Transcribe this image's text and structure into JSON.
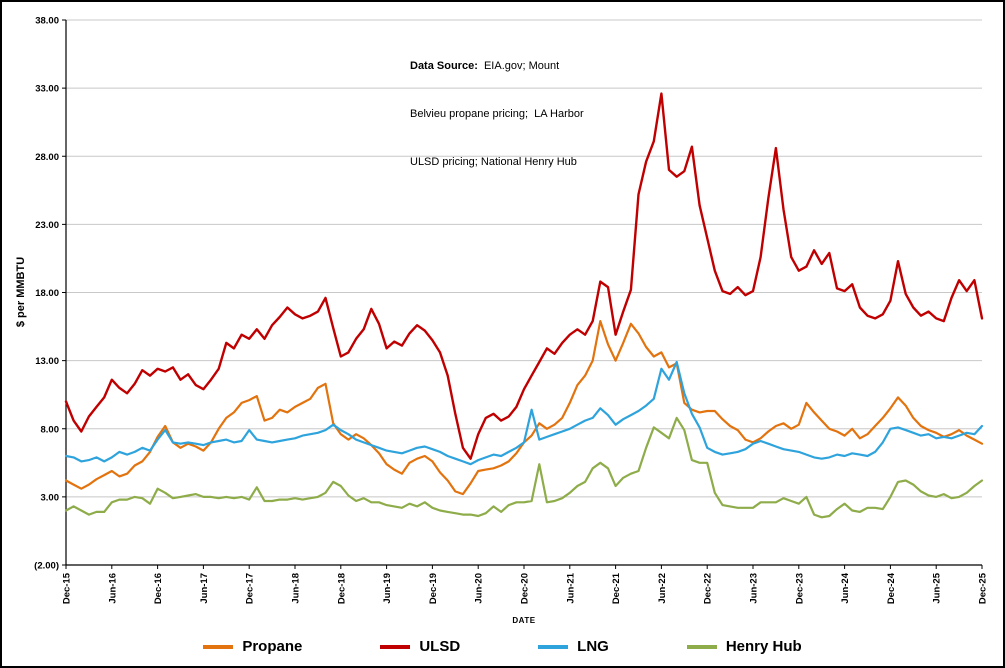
{
  "annotation": {
    "label": "Data Source:",
    "line1_rest": "  EIA.gov; Mount",
    "line2": "Belvieu propane pricing;  LA Harbor",
    "line3": "ULSD pricing; National Henry Hub"
  },
  "axes": {
    "ylabel": "$ per MMBTU",
    "xlabel": "DATE"
  },
  "legend": {
    "items": [
      {
        "label": "Propane",
        "color": "#E2730E"
      },
      {
        "label": "ULSD",
        "color": "#C00000"
      },
      {
        "label": "LNG",
        "color": "#2EA3DC"
      },
      {
        "label": "Henry Hub",
        "color": "#8EAC49"
      }
    ]
  },
  "chart_data": {
    "type": "line",
    "title": "",
    "ylabel": "$ per MMBTU",
    "xlabel": "DATE",
    "ylim": [
      -2,
      38
    ],
    "grid": "horizontal",
    "legend_position": "bottom",
    "gridline_color": "#C8C8C8",
    "axis_color": "#000000",
    "x_count": 121,
    "x_unit": "monthly from Dec-15 to Dec-25",
    "y_ticks": [
      {
        "value": 38,
        "label": "38.00"
      },
      {
        "value": 33,
        "label": "33.00"
      },
      {
        "value": 28,
        "label": "28.00"
      },
      {
        "value": 23,
        "label": "23.00"
      },
      {
        "value": 18,
        "label": "18.00"
      },
      {
        "value": 13,
        "label": "13.00"
      },
      {
        "value": 8,
        "label": "8.00"
      },
      {
        "value": 3,
        "label": "3.00"
      },
      {
        "value": -2,
        "label": "(2.00)"
      }
    ],
    "x_ticks": [
      {
        "index": 0,
        "label": "Dec-15"
      },
      {
        "index": 6,
        "label": "Jun-16"
      },
      {
        "index": 12,
        "label": "Dec-16"
      },
      {
        "index": 18,
        "label": "Jun-17"
      },
      {
        "index": 24,
        "label": "Dec-17"
      },
      {
        "index": 30,
        "label": "Jun-18"
      },
      {
        "index": 36,
        "label": "Dec-18"
      },
      {
        "index": 42,
        "label": "Jun-19"
      },
      {
        "index": 48,
        "label": "Dec-19"
      },
      {
        "index": 54,
        "label": "Jun-20"
      },
      {
        "index": 60,
        "label": "Dec-20"
      },
      {
        "index": 66,
        "label": "Jun-21"
      },
      {
        "index": 72,
        "label": "Dec-21"
      },
      {
        "index": 78,
        "label": "Jun-22"
      },
      {
        "index": 84,
        "label": "Dec-22"
      },
      {
        "index": 90,
        "label": "Jun-23"
      },
      {
        "index": 96,
        "label": "Dec-23"
      },
      {
        "index": 102,
        "label": "Jun-24"
      },
      {
        "index": 108,
        "label": "Dec-24"
      },
      {
        "index": 114,
        "label": "Jun-25"
      },
      {
        "index": 120,
        "label": "Dec-25"
      }
    ],
    "series": [
      {
        "key": "propane",
        "name": "Propane",
        "color": "#E2730E",
        "width": 2.2,
        "values": [
          4.2,
          3.9,
          3.6,
          3.9,
          4.3,
          4.6,
          4.9,
          4.5,
          4.7,
          5.3,
          5.6,
          6.3,
          7.4,
          8.2,
          7.0,
          6.6,
          6.9,
          6.7,
          6.4,
          7.0,
          8.0,
          8.8,
          9.2,
          9.9,
          10.1,
          10.4,
          8.6,
          8.8,
          9.4,
          9.2,
          9.6,
          9.9,
          10.2,
          11.0,
          11.3,
          8.4,
          7.6,
          7.2,
          7.6,
          7.3,
          6.8,
          6.2,
          5.4,
          5.0,
          4.7,
          5.5,
          5.8,
          6.0,
          5.6,
          4.8,
          4.2,
          3.4,
          3.2,
          4.0,
          4.9,
          5.0,
          5.1,
          5.3,
          5.6,
          6.2,
          7.0,
          7.5,
          8.4,
          8.0,
          8.3,
          8.8,
          9.9,
          11.2,
          11.9,
          13.0,
          15.9,
          14.2,
          13.0,
          14.3,
          15.7,
          15.0,
          14.0,
          13.3,
          13.6,
          12.5,
          12.8,
          9.9,
          9.4,
          9.2,
          9.3,
          9.3,
          8.7,
          8.2,
          7.9,
          7.2,
          7.0,
          7.3,
          7.8,
          8.2,
          8.4,
          8.0,
          8.3,
          9.9,
          9.2,
          8.6,
          8.0,
          7.8,
          7.5,
          8.0,
          7.3,
          7.6,
          8.2,
          8.8,
          9.5,
          10.3,
          9.7,
          8.8,
          8.2,
          7.9,
          7.7,
          7.4,
          7.6,
          7.9,
          7.5,
          7.2,
          6.9
        ]
      },
      {
        "key": "ulsd",
        "name": "ULSD",
        "color": "#C00000",
        "width": 2.4,
        "values": [
          10.0,
          8.6,
          7.8,
          8.9,
          9.6,
          10.3,
          11.6,
          11.0,
          10.6,
          11.3,
          12.3,
          11.9,
          12.4,
          12.2,
          12.5,
          11.6,
          12.0,
          11.2,
          10.9,
          11.6,
          12.4,
          14.3,
          13.9,
          14.9,
          14.6,
          15.3,
          14.6,
          15.6,
          16.2,
          16.9,
          16.4,
          16.1,
          16.3,
          16.6,
          17.6,
          15.4,
          13.3,
          13.6,
          14.6,
          15.3,
          16.8,
          15.7,
          13.9,
          14.4,
          14.1,
          15.0,
          15.6,
          15.2,
          14.5,
          13.6,
          11.9,
          9.1,
          6.6,
          5.8,
          7.6,
          8.8,
          9.1,
          8.6,
          8.9,
          9.6,
          10.9,
          11.9,
          12.9,
          13.9,
          13.5,
          14.3,
          14.9,
          15.3,
          14.9,
          15.9,
          18.8,
          18.4,
          14.9,
          16.6,
          18.2,
          25.2,
          27.6,
          29.1,
          32.6,
          27.0,
          26.5,
          26.9,
          28.7,
          24.4,
          22.0,
          19.6,
          18.1,
          17.9,
          18.4,
          17.8,
          18.1,
          20.6,
          24.9,
          28.6,
          24.1,
          20.6,
          19.6,
          19.9,
          21.1,
          20.1,
          20.9,
          18.3,
          18.1,
          18.6,
          16.9,
          16.3,
          16.1,
          16.4,
          17.4,
          20.3,
          17.9,
          16.9,
          16.3,
          16.6,
          16.1,
          15.9,
          17.6,
          18.9,
          18.1,
          18.9,
          16.1
        ]
      },
      {
        "key": "lng",
        "name": "LNG",
        "color": "#2EA3DC",
        "width": 2.2,
        "values": [
          6.0,
          5.9,
          5.6,
          5.7,
          5.9,
          5.6,
          5.9,
          6.3,
          6.1,
          6.3,
          6.6,
          6.4,
          7.2,
          7.9,
          7.0,
          6.9,
          7.0,
          6.9,
          6.8,
          7.0,
          7.1,
          7.2,
          7.0,
          7.1,
          7.9,
          7.2,
          7.1,
          7.0,
          7.1,
          7.2,
          7.3,
          7.5,
          7.6,
          7.7,
          7.9,
          8.3,
          7.9,
          7.6,
          7.2,
          7.0,
          6.8,
          6.6,
          6.4,
          6.3,
          6.2,
          6.4,
          6.6,
          6.7,
          6.5,
          6.3,
          6.0,
          5.8,
          5.6,
          5.4,
          5.7,
          5.9,
          6.1,
          6.0,
          6.3,
          6.6,
          7.0,
          9.4,
          7.2,
          7.4,
          7.6,
          7.8,
          8.0,
          8.3,
          8.6,
          8.8,
          9.5,
          9.0,
          8.3,
          8.7,
          9.0,
          9.3,
          9.7,
          10.2,
          12.4,
          11.6,
          12.9,
          10.6,
          9.1,
          8.1,
          6.6,
          6.3,
          6.1,
          6.2,
          6.3,
          6.5,
          6.9,
          7.1,
          6.9,
          6.7,
          6.5,
          6.4,
          6.3,
          6.1,
          5.9,
          5.8,
          5.9,
          6.1,
          6.0,
          6.2,
          6.1,
          6.0,
          6.3,
          7.0,
          8.0,
          8.1,
          7.9,
          7.7,
          7.5,
          7.6,
          7.3,
          7.4,
          7.3,
          7.5,
          7.7,
          7.6,
          8.2
        ]
      },
      {
        "key": "henry-hub",
        "name": "Henry Hub",
        "color": "#8EAC49",
        "width": 2.2,
        "values": [
          2.0,
          2.3,
          2.0,
          1.7,
          1.9,
          1.9,
          2.6,
          2.8,
          2.8,
          3.0,
          2.9,
          2.5,
          3.6,
          3.3,
          2.9,
          3.0,
          3.1,
          3.2,
          3.0,
          3.0,
          2.9,
          3.0,
          2.9,
          3.0,
          2.8,
          3.7,
          2.7,
          2.7,
          2.8,
          2.8,
          2.9,
          2.8,
          2.9,
          3.0,
          3.3,
          4.1,
          3.8,
          3.1,
          2.7,
          2.9,
          2.6,
          2.6,
          2.4,
          2.3,
          2.2,
          2.5,
          2.3,
          2.6,
          2.2,
          2.0,
          1.9,
          1.8,
          1.7,
          1.7,
          1.6,
          1.8,
          2.3,
          1.9,
          2.4,
          2.6,
          2.6,
          2.7,
          5.4,
          2.6,
          2.7,
          2.9,
          3.3,
          3.8,
          4.1,
          5.1,
          5.5,
          5.1,
          3.8,
          4.4,
          4.7,
          4.9,
          6.6,
          8.1,
          7.7,
          7.3,
          8.8,
          7.9,
          5.7,
          5.5,
          5.5,
          3.3,
          2.4,
          2.3,
          2.2,
          2.2,
          2.2,
          2.6,
          2.6,
          2.6,
          2.9,
          2.7,
          2.5,
          3.0,
          1.7,
          1.5,
          1.6,
          2.1,
          2.5,
          2.0,
          1.9,
          2.2,
          2.2,
          2.1,
          3.0,
          4.1,
          4.2,
          3.9,
          3.4,
          3.1,
          3.0,
          3.2,
          2.9,
          3.0,
          3.3,
          3.8,
          4.2
        ]
      }
    ]
  }
}
